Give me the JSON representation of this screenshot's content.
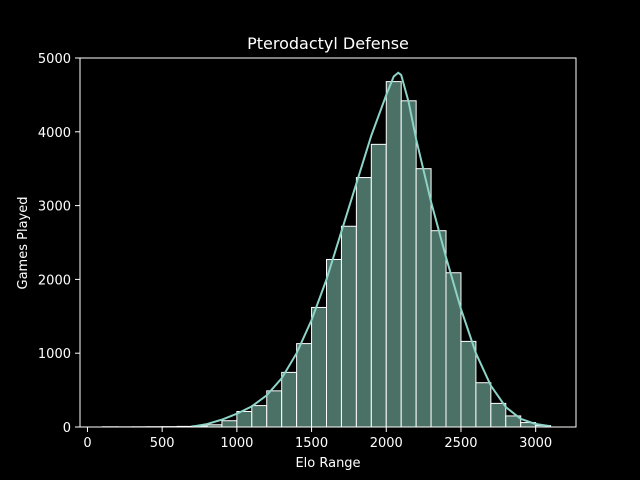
{
  "chart_data": {
    "type": "bar",
    "title": "Pterodactyl Defense",
    "xlabel": "Elo Range",
    "ylabel": "Games Played",
    "xlim": [
      -50,
      3270
    ],
    "ylim": [
      0,
      5000
    ],
    "x_ticks": [
      0,
      500,
      1000,
      1500,
      2000,
      2500,
      3000
    ],
    "y_ticks": [
      0,
      1000,
      2000,
      3000,
      4000,
      5000
    ],
    "grid": false,
    "bar_color": "#4b7065",
    "bar_edge_color": "#ffffff",
    "kde_color": "#8dd3c7",
    "bins": [
      {
        "start": 100,
        "end": 200,
        "value": 3
      },
      {
        "start": 200,
        "end": 300,
        "value": 2
      },
      {
        "start": 300,
        "end": 400,
        "value": 3
      },
      {
        "start": 400,
        "end": 500,
        "value": 4
      },
      {
        "start": 500,
        "end": 600,
        "value": 5
      },
      {
        "start": 600,
        "end": 700,
        "value": 8
      },
      {
        "start": 700,
        "end": 800,
        "value": 15
      },
      {
        "start": 800,
        "end": 900,
        "value": 30
      },
      {
        "start": 900,
        "end": 1000,
        "value": 85
      },
      {
        "start": 1000,
        "end": 1100,
        "value": 210
      },
      {
        "start": 1100,
        "end": 1200,
        "value": 290
      },
      {
        "start": 1200,
        "end": 1300,
        "value": 490
      },
      {
        "start": 1300,
        "end": 1400,
        "value": 740
      },
      {
        "start": 1400,
        "end": 1500,
        "value": 1130
      },
      {
        "start": 1500,
        "end": 1600,
        "value": 1620
      },
      {
        "start": 1600,
        "end": 1700,
        "value": 2270
      },
      {
        "start": 1700,
        "end": 1800,
        "value": 2720
      },
      {
        "start": 1800,
        "end": 1900,
        "value": 3380
      },
      {
        "start": 1900,
        "end": 2000,
        "value": 3830
      },
      {
        "start": 2000,
        "end": 2100,
        "value": 4680
      },
      {
        "start": 2100,
        "end": 2200,
        "value": 4420
      },
      {
        "start": 2200,
        "end": 2300,
        "value": 3500
      },
      {
        "start": 2300,
        "end": 2400,
        "value": 2660
      },
      {
        "start": 2400,
        "end": 2500,
        "value": 2090
      },
      {
        "start": 2500,
        "end": 2600,
        "value": 1160
      },
      {
        "start": 2600,
        "end": 2700,
        "value": 600
      },
      {
        "start": 2700,
        "end": 2800,
        "value": 320
      },
      {
        "start": 2800,
        "end": 2900,
        "value": 150
      },
      {
        "start": 2900,
        "end": 3000,
        "value": 60
      },
      {
        "start": 3000,
        "end": 3100,
        "value": 20
      }
    ],
    "kde": {
      "x": [
        700,
        800,
        900,
        1000,
        1100,
        1200,
        1300,
        1400,
        1500,
        1600,
        1700,
        1800,
        1900,
        2000,
        2050,
        2080,
        2100,
        2150,
        2200,
        2300,
        2400,
        2500,
        2600,
        2700,
        2800,
        2900,
        3000,
        3100
      ],
      "y": [
        5,
        40,
        100,
        180,
        280,
        430,
        660,
        1000,
        1450,
        2000,
        2650,
        3300,
        3950,
        4500,
        4750,
        4800,
        4770,
        4400,
        3900,
        3050,
        2300,
        1600,
        1000,
        560,
        270,
        110,
        40,
        10
      ]
    }
  }
}
